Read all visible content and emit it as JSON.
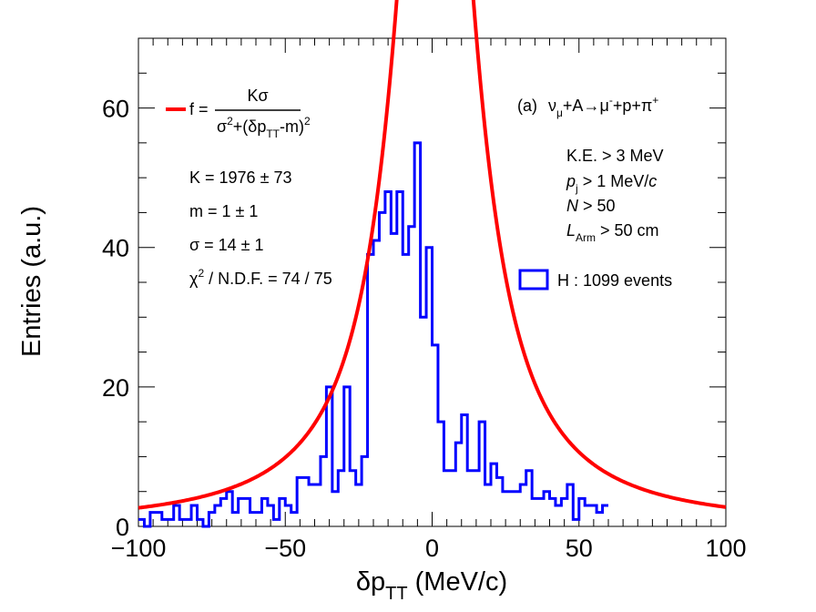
{
  "chart_data": {
    "type": "bar",
    "subtype": "histogram-step-with-fit",
    "xlabel_main": "δp",
    "xlabel_sub": "TT",
    "xlabel_unit": " (MeV/c)",
    "ylabel": "Entries (a.u.)",
    "xlim": [
      -100,
      100
    ],
    "ylim": [
      0,
      70
    ],
    "x_ticks": [
      -100,
      -50,
      0,
      50,
      100
    ],
    "x_tick_labels": [
      "−100",
      "−50",
      "0",
      "50",
      "100"
    ],
    "y_ticks": [
      0,
      20,
      40,
      60
    ],
    "y_tick_labels": [
      "0",
      "20",
      "40",
      "60"
    ],
    "bin_width": 2,
    "bin_start": -100,
    "histogram": {
      "name": "H : 1099 events",
      "color": "#0000ff",
      "values": [
        1,
        0,
        2,
        2,
        1,
        1,
        3,
        1,
        1,
        3,
        1,
        0,
        2,
        3,
        4,
        5,
        2,
        4,
        4,
        2,
        2,
        4,
        3,
        1,
        4,
        3,
        2,
        7,
        7,
        6,
        6,
        10,
        20,
        5,
        8,
        20,
        8,
        6,
        10,
        39,
        41,
        45,
        48,
        42,
        48,
        39,
        43,
        55,
        30,
        40,
        26,
        15,
        8,
        8,
        12,
        16,
        8,
        8,
        15,
        6,
        9,
        7,
        5,
        5,
        5,
        6,
        8,
        4,
        4,
        5,
        4,
        3,
        4,
        6,
        1,
        4,
        3,
        3,
        2,
        3
      ],
      "values_from_x": -100,
      "values_note_end": 60
    },
    "fit": {
      "label_lhs": "f = ",
      "numerator": "Kσ",
      "denominator": "σ²+(δp_TT-m)²",
      "color": "#ff0000",
      "K": 1976,
      "m": 1,
      "sigma": 14
    },
    "fit_results": [
      "K = 1976 ± 73",
      "m = 1 ± 1",
      "σ = 14 ± 1",
      "χ² / N.D.F. = 74 / 75"
    ],
    "reaction_label": "(a)  νμ+A→μ⁻+p+π⁺",
    "cuts": [
      "K.E. > 3 MeV",
      "p_j > 1 MeV/c",
      "N > 50",
      "L_Arm > 50 cm"
    ],
    "legend_hist_label": "H : 1099 events",
    "legend_position": "top-right"
  },
  "texts": {
    "fit_label_lhs": "f = ",
    "fit_numerator": "Kσ",
    "k_result": "K = 1976 ± 73",
    "m_result": "m = 1 ± 1",
    "sigma_result": "σ = 14 ± 1",
    "chi2_result": "χ",
    "chi2_rest": " / N.D.F. = 74 / 75",
    "reaction_prefix": "(a)",
    "cut1": "K.E. > 3 MeV",
    "cut2_p": "p",
    "cut2_sub": "j",
    "cut2_rest": " > 1 MeV/",
    "cut2_c": "c",
    "cut3_n": "N",
    "cut3_rest": " > 50",
    "cut4_l": "L",
    "cut4_sub": "Arm",
    "cut4_rest": " > 50 cm",
    "legend_hist": "H : 1099 events",
    "ylabel": "Entries (a.u.)",
    "xlabel_main": "δp",
    "xlabel_sub": "TT",
    "xlabel_unit": " (MeV/c)"
  }
}
